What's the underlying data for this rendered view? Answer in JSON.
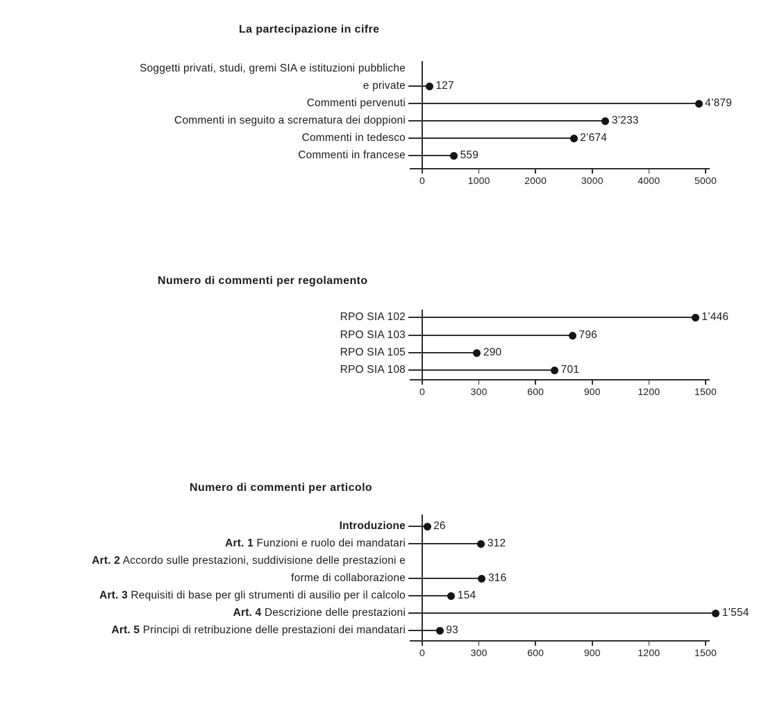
{
  "page": {
    "background": "#ffffff",
    "text_color": "#1c1c1c",
    "line_color": "#2e2e2e",
    "dot_color": "#151515"
  },
  "chart_data": [
    {
      "type": "lollipop",
      "title": "La partecipazione in cifre",
      "categories": [
        "Soggetti privati, studi, gremi SIA e istituzioni pubbliche e private",
        "Commenti pervenuti",
        "Commenti in seguito a scrematura dei doppioni",
        "Commenti in tedesco",
        "Commenti in francese"
      ],
      "label_lines": [
        [
          [
            {
              "text": "Soggetti privati, studi, gremi SIA e istituzioni pubbliche",
              "bold": false
            }
          ],
          [
            {
              "text": "e private",
              "bold": false
            }
          ]
        ],
        [
          [
            {
              "text": "Commenti pervenuti",
              "bold": false
            }
          ]
        ],
        [
          [
            {
              "text": "Commenti in seguito a scrematura dei doppioni",
              "bold": false
            }
          ]
        ],
        [
          [
            {
              "text": "Commenti in tedesco",
              "bold": false
            }
          ]
        ],
        [
          [
            {
              "text": "Commenti in francese",
              "bold": false
            }
          ]
        ]
      ],
      "values": [
        127,
        4879,
        3233,
        2674,
        559
      ],
      "value_labels": [
        "127",
        "4’879",
        "3’233",
        "2’674",
        "559"
      ],
      "xlim": [
        0,
        5000
      ],
      "tick_values": [
        0,
        1000,
        2000,
        3000,
        4000,
        5000
      ],
      "tick_labels": [
        "0",
        "1000",
        "2000",
        "3000",
        "4000",
        "5000"
      ],
      "grid": false,
      "legend": null
    },
    {
      "type": "lollipop",
      "title": "Numero di commenti per regolamento",
      "categories": [
        "RPO SIA 102",
        "RPO SIA 103",
        "RPO SIA 105",
        "RPO SIA 108"
      ],
      "label_lines": [
        [
          [
            {
              "text": "RPO SIA 102",
              "bold": false
            }
          ]
        ],
        [
          [
            {
              "text": "RPO SIA 103",
              "bold": false
            }
          ]
        ],
        [
          [
            {
              "text": "RPO SIA 105",
              "bold": false
            }
          ]
        ],
        [
          [
            {
              "text": "RPO SIA 108",
              "bold": false
            }
          ]
        ]
      ],
      "values": [
        1446,
        796,
        290,
        701
      ],
      "value_labels": [
        "1’446",
        "796",
        "290",
        "701"
      ],
      "xlim": [
        0,
        1500
      ],
      "tick_values": [
        0,
        300,
        600,
        900,
        1200,
        1500
      ],
      "tick_labels": [
        "0",
        "300",
        "600",
        "900",
        "1200",
        "1500"
      ],
      "grid": false,
      "legend": null
    },
    {
      "type": "lollipop",
      "title": "Numero di commenti per articolo",
      "categories": [
        "Introduzione",
        "Art. 1 Funzioni e ruolo dei mandatari",
        "Art. 2 Accordo sulle prestazioni, suddivisione delle prestazioni e forme di collaborazione",
        "Art. 3 Requisiti di base per gli strumenti di ausilio per il calcolo",
        "Art. 4 Descrizione delle prestazioni",
        "Art. 5 Principi di retribuzione delle prestazioni dei mandatari"
      ],
      "label_lines": [
        [
          [
            {
              "text": "Introduzione",
              "bold": true
            }
          ]
        ],
        [
          [
            {
              "text": "Art. 1",
              "bold": true
            },
            {
              "text": " Funzioni e ruolo dei mandatari",
              "bold": false
            }
          ]
        ],
        [
          [
            {
              "text": "Art. 2",
              "bold": true
            },
            {
              "text": " Accordo sulle prestazioni, suddivisione delle prestazioni e",
              "bold": false
            }
          ],
          [
            {
              "text": "forme di collaborazione",
              "bold": false
            }
          ]
        ],
        [
          [
            {
              "text": "Art. 3",
              "bold": true
            },
            {
              "text": " Requisiti di base per gli strumenti di ausilio per il calcolo",
              "bold": false
            }
          ]
        ],
        [
          [
            {
              "text": "Art. 4",
              "bold": true
            },
            {
              "text": " Descrizione delle prestazioni",
              "bold": false
            }
          ]
        ],
        [
          [
            {
              "text": "Art. 5",
              "bold": true
            },
            {
              "text": " Principi di retribuzione delle prestazioni dei mandatari",
              "bold": false
            }
          ]
        ]
      ],
      "values": [
        26,
        312,
        316,
        154,
        1554,
        93
      ],
      "value_labels": [
        "26",
        "312",
        "316",
        "154",
        "1’554",
        "93"
      ],
      "xlim": [
        0,
        1500
      ],
      "tick_values": [
        0,
        300,
        600,
        900,
        1200,
        1500
      ],
      "tick_labels": [
        "0",
        "300",
        "600",
        "900",
        "1200",
        "1500"
      ],
      "grid": false,
      "legend": null
    }
  ]
}
